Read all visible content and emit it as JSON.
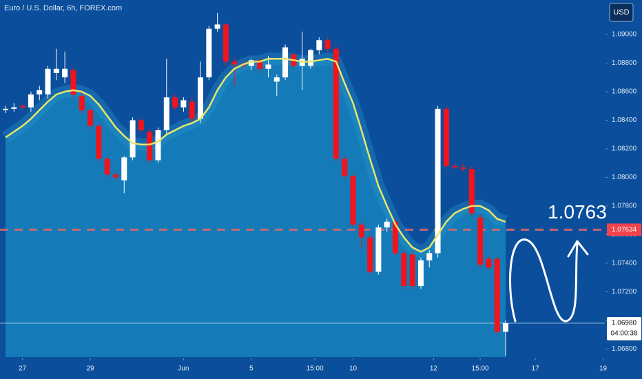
{
  "chart_data": {
    "type": "candlestick",
    "title": "Euro / U.S. Dollar, 6h, FOREX.com",
    "currency": "USD",
    "up_color": "#ffffff",
    "down_color": "#f2131d",
    "open": [
      1.0847,
      1.0848,
      1.085,
      1.0849,
      1.0858,
      1.0858,
      1.0873,
      1.087,
      1.0875,
      1.0857,
      1.0847,
      1.0836,
      1.0813,
      1.0802,
      1.0798,
      1.0814,
      1.084,
      1.0832,
      1.0812,
      1.0833,
      1.0856,
      1.0849,
      1.0853,
      1.0841,
      1.087,
      1.0904,
      1.0907,
      1.0881,
      1.0879,
      1.0878,
      1.0882,
      1.0876,
      1.0867,
      1.087,
      1.0886,
      1.0878,
      1.0878,
      1.0889,
      1.0896,
      1.089,
      1.0813,
      1.0801,
      1.0767,
      1.0758,
      1.0734,
      1.0765,
      1.0769,
      1.0747,
      1.0746,
      1.0724,
      1.0742,
      1.0747,
      1.0848,
      1.0808,
      1.0807,
      1.0806,
      1.0772,
      1.0743,
      1.0743,
      1.0692
    ],
    "high": [
      1.085,
      1.0852,
      1.0851,
      1.086,
      1.0864,
      1.0878,
      1.089,
      1.0888,
      1.0877,
      1.086,
      1.0849,
      1.0838,
      1.0815,
      1.0804,
      1.0815,
      1.0842,
      1.0842,
      1.0834,
      1.0835,
      1.0883,
      1.0858,
      1.0856,
      1.0856,
      1.0881,
      1.0906,
      1.0915,
      1.0908,
      1.0884,
      1.0882,
      1.0883,
      1.0884,
      1.0885,
      1.0872,
      1.0893,
      1.0888,
      1.0902,
      1.089,
      1.0898,
      1.0898,
      1.0892,
      1.0815,
      1.0803,
      1.0769,
      1.076,
      1.0767,
      1.0771,
      1.0771,
      1.0749,
      1.0748,
      1.0744,
      1.0749,
      1.085,
      1.085,
      1.081,
      1.081,
      1.0808,
      1.0774,
      1.0745,
      1.0745,
      1.07
    ],
    "low": [
      1.0845,
      1.0846,
      1.0848,
      1.0846,
      1.0854,
      1.0855,
      1.0868,
      1.0866,
      1.0856,
      1.0845,
      1.0834,
      1.0811,
      1.08,
      1.0798,
      1.0789,
      1.0812,
      1.0831,
      1.081,
      1.081,
      1.083,
      1.0847,
      1.0846,
      1.0838,
      1.0838,
      1.0868,
      1.0902,
      1.0878,
      1.0864,
      1.0876,
      1.0875,
      1.0873,
      1.087,
      1.0857,
      1.0868,
      1.0876,
      1.0861,
      1.0876,
      1.0886,
      1.0888,
      1.0811,
      1.0799,
      1.0765,
      1.075,
      1.0732,
      1.0732,
      1.0762,
      1.0745,
      1.0722,
      1.0722,
      1.0722,
      1.0737,
      1.0744,
      1.0806,
      1.0805,
      1.0804,
      1.0773,
      1.0737,
      1.0735,
      1.069,
      1.0675
    ],
    "close": [
      1.0848,
      1.0849,
      1.0849,
      1.0858,
      1.0861,
      1.0876,
      1.0876,
      1.0876,
      1.0858,
      1.0847,
      1.0836,
      1.0813,
      1.0802,
      1.08,
      1.0814,
      1.084,
      1.0833,
      1.0812,
      1.0833,
      1.0856,
      1.0849,
      1.0854,
      1.0841,
      1.087,
      1.0904,
      1.0907,
      1.0881,
      1.0879,
      1.0878,
      1.0882,
      1.0876,
      1.0879,
      1.087,
      1.0891,
      1.0878,
      1.0883,
      1.0889,
      1.0896,
      1.089,
      1.0813,
      1.0801,
      1.0767,
      1.0758,
      1.0734,
      1.0765,
      1.0769,
      1.0747,
      1.0724,
      1.0724,
      1.0742,
      1.0747,
      1.0848,
      1.0808,
      1.0807,
      1.0806,
      1.0775,
      1.0739,
      1.0737,
      1.0692,
      1.0698
    ],
    "ma": {
      "color": "#e8e66a",
      "values": [
        1.0828,
        1.0832,
        1.0836,
        1.0841,
        1.0847,
        1.0853,
        1.0858,
        1.086,
        1.0861,
        1.086,
        1.0857,
        1.0851,
        1.0843,
        1.0835,
        1.0829,
        1.0824,
        1.0823,
        1.0823,
        1.0825,
        1.083,
        1.0833,
        1.0836,
        1.0838,
        1.0841,
        1.0849,
        1.0861,
        1.087,
        1.0876,
        1.0879,
        1.0881,
        1.0881,
        1.0883,
        1.0883,
        1.0883,
        1.0882,
        1.0881,
        1.0881,
        1.0882,
        1.0883,
        1.0881,
        1.0866,
        1.0852,
        1.0833,
        1.0813,
        1.0794,
        1.078,
        1.0767,
        1.0758,
        1.0751,
        1.0748,
        1.0751,
        1.076,
        1.0769,
        1.0775,
        1.0778,
        1.078,
        1.078,
        1.0777,
        1.0771,
        1.0769
      ]
    },
    "xlim": [
      -0.65,
      70.7
    ],
    "xticks": [
      {
        "value": 2,
        "label": "27"
      },
      {
        "value": 10,
        "label": "29"
      },
      {
        "value": 21,
        "label": "Jun"
      },
      {
        "value": 29,
        "label": "5"
      },
      {
        "value": 36.5,
        "label": "15:00"
      },
      {
        "value": 41,
        "label": "10"
      },
      {
        "value": 50.5,
        "label": "12"
      },
      {
        "value": 56,
        "label": "15:00"
      },
      {
        "value": 62.5,
        "label": "17"
      },
      {
        "value": 70.5,
        "label": "19"
      }
    ],
    "ylim": [
      1.06744,
      1.09241
    ],
    "yticks": [
      {
        "value": 1.068,
        "label": "1.06800"
      },
      {
        "value": 1.07,
        "label": "1.07000"
      },
      {
        "value": 1.072,
        "label": "1.07200"
      },
      {
        "value": 1.074,
        "label": "1.07400"
      },
      {
        "value": 1.076,
        "label": "1.07600"
      },
      {
        "value": 1.078,
        "label": "1.07800"
      },
      {
        "value": 1.08,
        "label": "1.08000"
      },
      {
        "value": 1.082,
        "label": "1.08200"
      },
      {
        "value": 1.084,
        "label": "1.08400"
      },
      {
        "value": 1.086,
        "label": "1.08600"
      },
      {
        "value": 1.088,
        "label": "1.08800"
      },
      {
        "value": 1.09,
        "label": "1.09000"
      }
    ],
    "level": {
      "value": 1.07634,
      "label": "1.07634",
      "color": "#f2434b"
    },
    "last_price": {
      "value": 1.0698,
      "label": "1.06980",
      "countdown": "04:00:38"
    },
    "target": 1.0763
  }
}
